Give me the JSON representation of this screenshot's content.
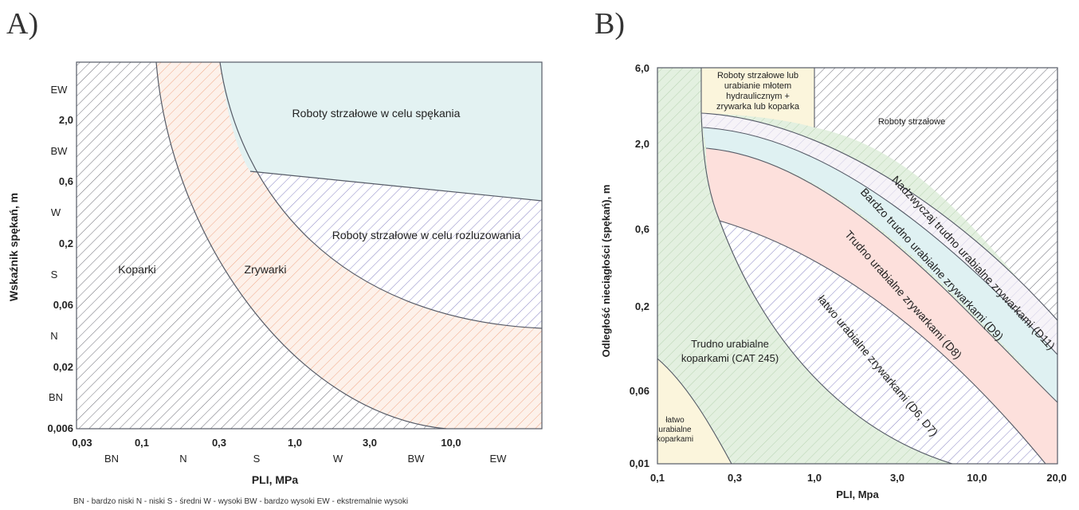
{
  "panel_a": {
    "letter": "A)",
    "y_axis_title": "Wskaźnik spękań, m",
    "x_axis_title": "PLI, MPa",
    "x_ticks": [
      "0,03",
      "0,1",
      "0,3",
      "1,0",
      "3,0",
      "10,0"
    ],
    "x_classes": [
      "BN",
      "N",
      "S",
      "W",
      "BW",
      "EW"
    ],
    "y_ticks": [
      "2,0",
      "0,6",
      "0,2",
      "0,06",
      "0,02",
      "0,006"
    ],
    "y_classes": [
      "EW",
      "BW",
      "W",
      "S",
      "N",
      "BN"
    ],
    "regions": {
      "koparki": "Koparki",
      "zrywarki": "Zrywarki",
      "spekania": "Roboty strzałowe w celu spękania",
      "rozluzowania": "Roboty strzałowe w celu rozluzowania"
    },
    "legend": "BN - bardzo niski   N - niski   S - średni   W - wysoki   BW - bardzo wysoki   EW - ekstremalnie wysoki"
  },
  "panel_b": {
    "letter": "B)",
    "y_axis_title": "Odległość nieciągłości (spękań), m",
    "x_axis_title": "PLI, Mpa",
    "x_ticks": [
      "0,1",
      "0,3",
      "1,0",
      "3,0",
      "10,0",
      "20,0"
    ],
    "y_ticks": [
      "6,0",
      "2,0",
      "0,6",
      "0,2",
      "0,06",
      "0,01"
    ],
    "regions": {
      "strzalowe": "Roboty strzałowe",
      "mlot": [
        "Roboty strzałowe lub",
        "urabianie młotem",
        "hydraulicznym +",
        "zrywarka lub koparka"
      ],
      "d11": "Nadzwyczaj trudno urabialne zrywarkami (D11)",
      "d9": "Bardzo trudno urabialne zrywarkami (D9)",
      "d8": "Trudno urabialne zrywarkami (D8)",
      "d6d7": "łatwo urabialne zrywarkami (D6, D7)",
      "cat245": [
        "Trudno urabialne",
        "koparkami (CAT 245)"
      ],
      "latwo_kop": [
        "łatwo",
        "urabialne",
        "koparkami"
      ]
    }
  },
  "colors": {
    "hatch_gray": "#6f6f78",
    "hatch_orange": "#f0a888",
    "fill_teal": "#e3f2f2",
    "hatch_purple": "#8a86c4",
    "fill_pink": "#fde0dc",
    "fill_green": "#e3f0e0",
    "fill_yellow": "#fbf5dc",
    "border": "#555a66"
  }
}
